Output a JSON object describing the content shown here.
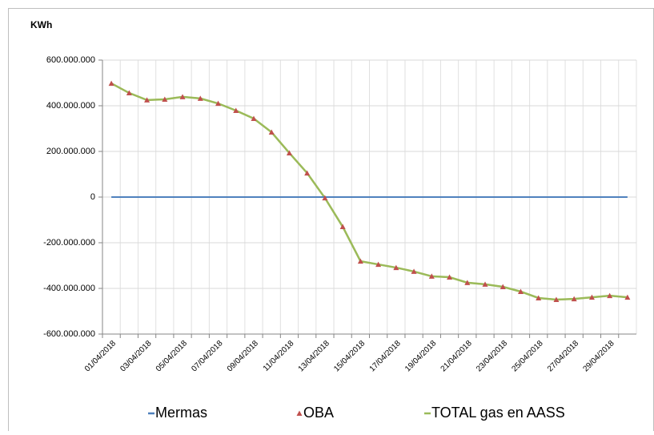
{
  "chart_data": {
    "type": "line",
    "y_label": "KWh",
    "categories": [
      "01/04/2018",
      null,
      "03/04/2018",
      null,
      "05/04/2018",
      null,
      "07/04/2018",
      null,
      "09/04/2018",
      null,
      "11/04/2018",
      null,
      "13/04/2018",
      null,
      "15/04/2018",
      null,
      "17/04/2018",
      null,
      "19/04/2018",
      null,
      "21/04/2018",
      null,
      "23/04/2018",
      null,
      "25/04/2018",
      null,
      "27/04/2018",
      null,
      "29/04/2018",
      null
    ],
    "series": [
      {
        "name": "Mermas",
        "color": "#4f81bd",
        "marker": "none",
        "values": [
          0,
          0,
          0,
          0,
          0,
          0,
          0,
          0,
          0,
          0,
          0,
          0,
          0,
          0,
          0,
          0,
          0,
          0,
          0,
          0,
          0,
          0,
          0,
          0,
          0,
          0,
          0,
          0,
          0,
          0
        ]
      },
      {
        "name": "OBA",
        "color": "#c0504d",
        "marker": "triangle",
        "values": [
          498000000,
          456000000,
          425000000,
          428000000,
          439000000,
          432000000,
          410000000,
          379000000,
          344000000,
          284000000,
          193000000,
          105000000,
          -4000000,
          -130000000,
          -281000000,
          -295000000,
          -309000000,
          -326000000,
          -347000000,
          -351000000,
          -375000000,
          -382000000,
          -393000000,
          -414000000,
          -442000000,
          -449000000,
          -446000000,
          -439000000,
          -432000000,
          -439000000
        ]
      },
      {
        "name": "TOTAL gas en AASS",
        "color": "#9bbb59",
        "marker": "none",
        "values": [
          498000000,
          456000000,
          425000000,
          428000000,
          439000000,
          432000000,
          410000000,
          379000000,
          344000000,
          284000000,
          193000000,
          105000000,
          -4000000,
          -130000000,
          -281000000,
          -295000000,
          -309000000,
          -326000000,
          -347000000,
          -351000000,
          -375000000,
          -382000000,
          -393000000,
          -414000000,
          -442000000,
          -449000000,
          -446000000,
          -439000000,
          -432000000,
          -439000000
        ]
      }
    ],
    "ylim": [
      -600000000,
      600000000
    ],
    "yticks": [
      {
        "value": -600000000,
        "label": "-600.000.000"
      },
      {
        "value": -400000000,
        "label": "-400.000.000"
      },
      {
        "value": -200000000,
        "label": "-200.000.000"
      },
      0,
      {
        "value": 200000000,
        "label": "200.000.000"
      },
      {
        "value": 400000000,
        "label": "400.000.000"
      },
      {
        "value": 600000000,
        "label": "600.000.000"
      }
    ],
    "grid": true,
    "legend": "bottom"
  }
}
